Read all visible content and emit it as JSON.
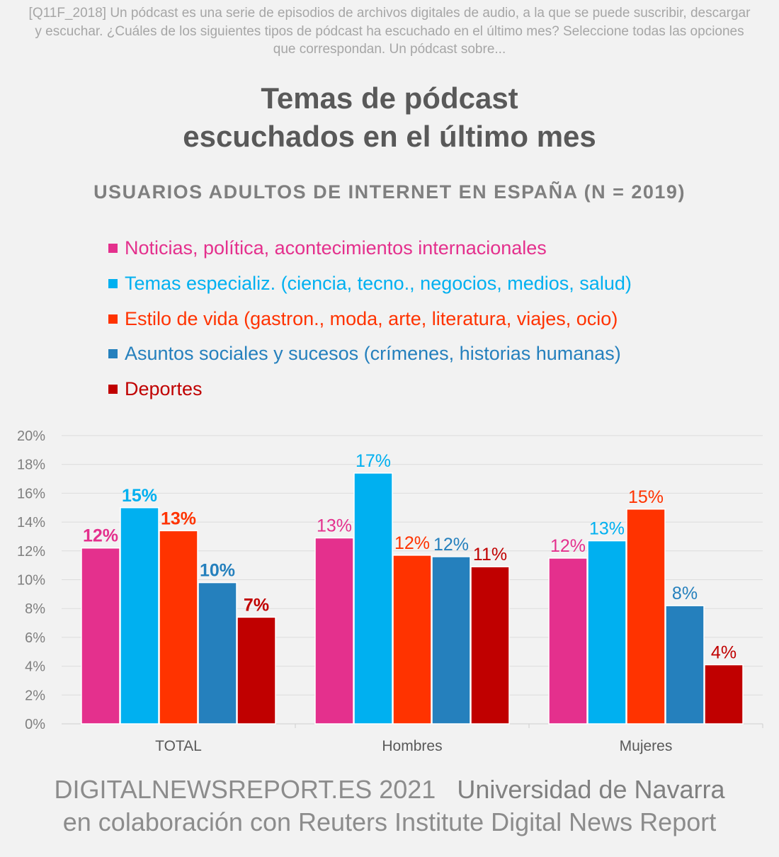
{
  "question": "[Q11F_2018] Un pódcast es una serie de episodios de archivos digitales de audio, a la que se puede suscribir, descargar y escuchar. ¿Cuáles de los siguientes tipos de pódcast ha escuchado en el último mes? Seleccione todas las opciones que correspondan. Un pódcast sobre...",
  "footer": {
    "line1a": "DIGITALNEWSREPORT.ES 2021",
    "line1b": "Universidad de Navarra",
    "line2": "en colaboración con Reuters Institute Digital News Report"
  },
  "chart_data": {
    "type": "bar",
    "title": "Temas de pódcast escuchados en el último mes",
    "title_lines": [
      "Temas de pódcast",
      "escuchados en el último mes"
    ],
    "subtitle": "USUARIOS ADULTOS DE INTERNET EN ESPAÑA (N = 2019)",
    "categories": [
      "TOTAL",
      "Hombres",
      "Mujeres"
    ],
    "ylim": [
      0,
      20
    ],
    "yticks": [
      "0%",
      "2%",
      "4%",
      "6%",
      "8%",
      "10%",
      "12%",
      "14%",
      "16%",
      "18%",
      "20%"
    ],
    "grid": true,
    "legend_placement": "top",
    "series": [
      {
        "name": "Noticias, política, acontecimientos internacionales",
        "color": "#e4308d",
        "values": [
          12.2,
          12.9,
          11.5
        ],
        "labels": [
          "12%",
          "13%",
          "12%"
        ]
      },
      {
        "name": "Temas especializ. (ciencia, tecno., negocios, medios, salud)",
        "color": "#00b0f0",
        "values": [
          15.0,
          17.4,
          12.7
        ],
        "labels": [
          "15%",
          "17%",
          "13%"
        ]
      },
      {
        "name": "Estilo de vida (gastron., moda, arte, literatura, viajes, ocio)",
        "color": "#ff3300",
        "values": [
          13.4,
          11.7,
          14.9
        ],
        "labels": [
          "13%",
          "12%",
          "15%"
        ]
      },
      {
        "name": "Asuntos sociales y sucesos (crímenes, historias humanas)",
        "color": "#2580bd",
        "values": [
          9.8,
          11.6,
          8.2
        ],
        "labels": [
          "10%",
          "12%",
          "8%"
        ]
      },
      {
        "name": "Deportes",
        "color": "#c00000",
        "values": [
          7.4,
          10.9,
          4.1
        ],
        "labels": [
          "7%",
          "11%",
          "4%"
        ]
      }
    ]
  }
}
